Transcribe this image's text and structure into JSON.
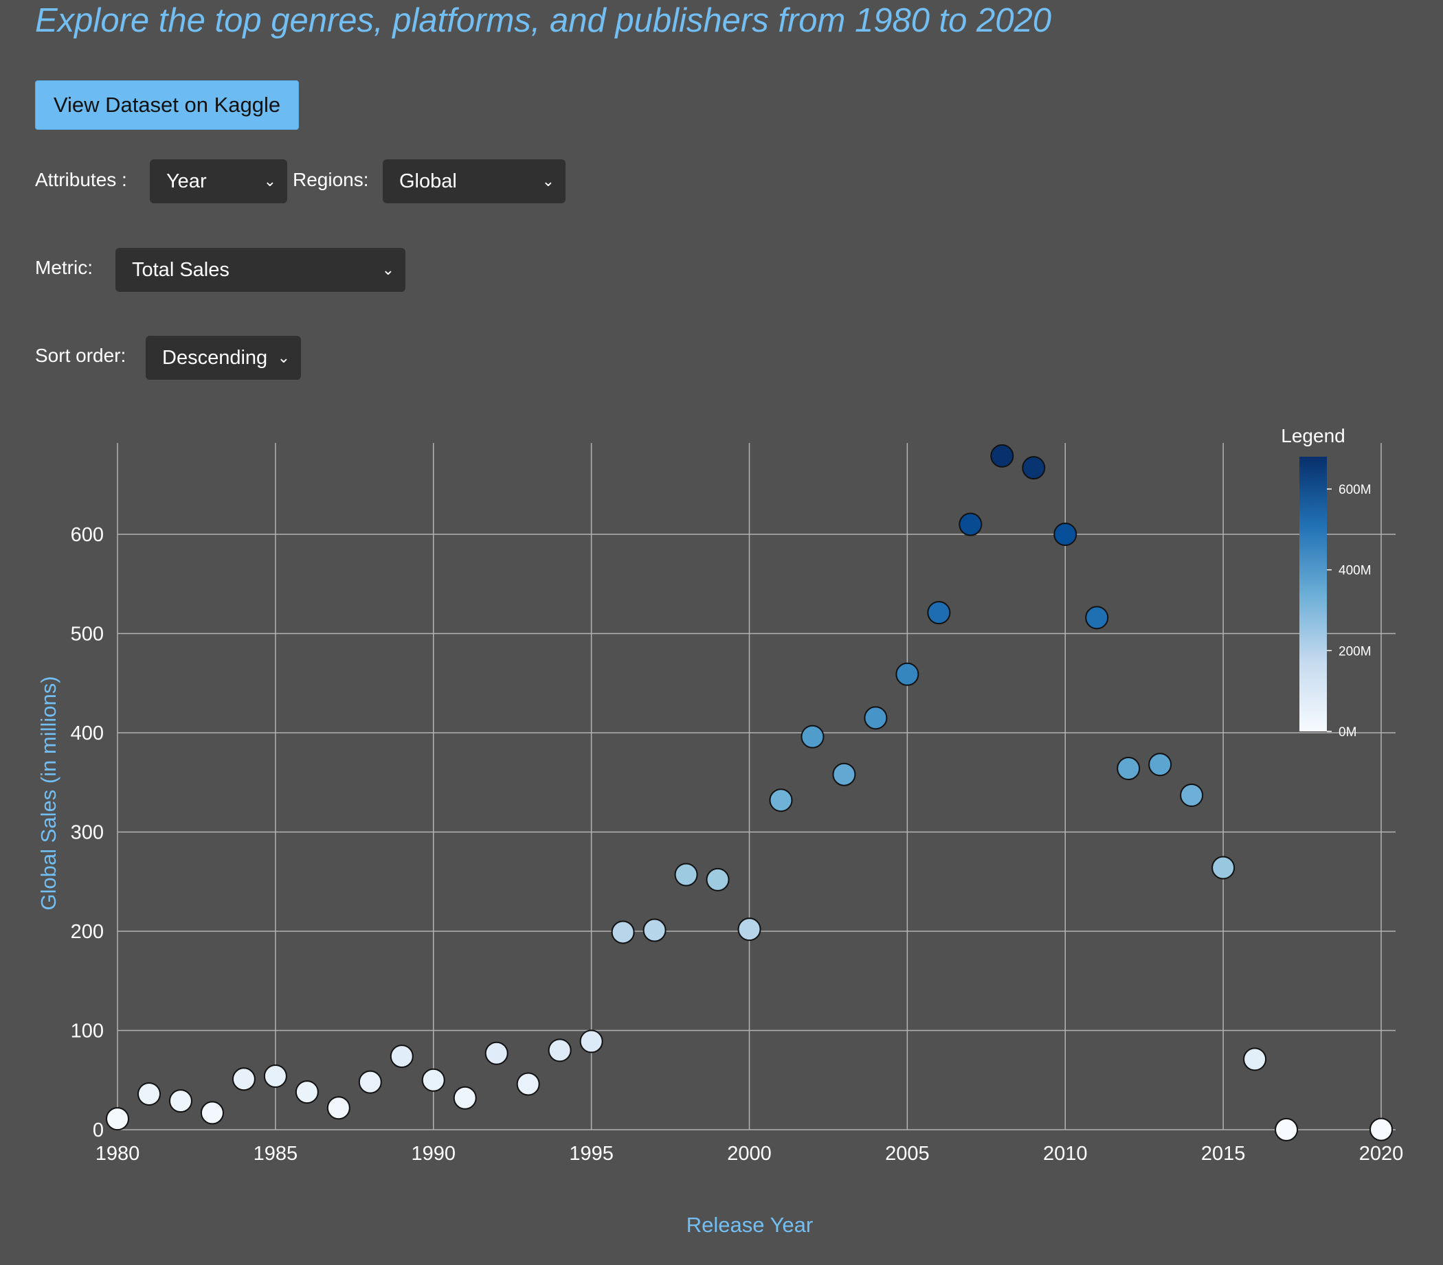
{
  "subtitle": "Explore the top genres, platforms, and publishers from 1980 to 2020",
  "kaggle_button": {
    "label": "View Dataset on Kaggle"
  },
  "controls": {
    "attributes": {
      "label": "Attributes :",
      "value": "Year"
    },
    "regions": {
      "label": "Regions:",
      "value": "Global"
    },
    "metric": {
      "label": "Metric:",
      "value": "Total Sales"
    },
    "sort_order": {
      "label": "Sort order:",
      "value": "Descending"
    }
  },
  "icons": {
    "dropdown": "chevron-down-icon"
  },
  "colors": {
    "accent": "#73bff3",
    "button": "#6cbcf3",
    "background": "#515151",
    "select_bg": "#303030",
    "scale_low": "#f7fbff",
    "scale_high": "#08306b"
  },
  "chart_data": {
    "type": "scatter",
    "title": "",
    "xlabel": "Release Year",
    "ylabel": "Global Sales (in millions)",
    "xlim": [
      1980,
      2020
    ],
    "ylim": [
      0,
      690
    ],
    "x_ticks": [
      1980,
      1985,
      1990,
      1995,
      2000,
      2005,
      2010,
      2015,
      2020
    ],
    "y_ticks": [
      0,
      100,
      200,
      300,
      400,
      500,
      600
    ],
    "grid": true,
    "legend": {
      "title": "Legend",
      "placement": "top-right",
      "domain": [
        0,
        680
      ],
      "ticks": [
        {
          "value": 0,
          "label": "0M"
        },
        {
          "value": 200,
          "label": "200M"
        },
        {
          "value": 400,
          "label": "400M"
        },
        {
          "value": 600,
          "label": "600M"
        }
      ]
    },
    "points": [
      {
        "x": 1980,
        "y": 11
      },
      {
        "x": 1981,
        "y": 36
      },
      {
        "x": 1982,
        "y": 29
      },
      {
        "x": 1983,
        "y": 17
      },
      {
        "x": 1984,
        "y": 51
      },
      {
        "x": 1985,
        "y": 54
      },
      {
        "x": 1986,
        "y": 38
      },
      {
        "x": 1987,
        "y": 22
      },
      {
        "x": 1988,
        "y": 48
      },
      {
        "x": 1989,
        "y": 74
      },
      {
        "x": 1990,
        "y": 50
      },
      {
        "x": 1991,
        "y": 32
      },
      {
        "x": 1992,
        "y": 77
      },
      {
        "x": 1993,
        "y": 46
      },
      {
        "x": 1994,
        "y": 80
      },
      {
        "x": 1995,
        "y": 89
      },
      {
        "x": 1996,
        "y": 199
      },
      {
        "x": 1997,
        "y": 201
      },
      {
        "x": 1998,
        "y": 257
      },
      {
        "x": 1999,
        "y": 252
      },
      {
        "x": 2000,
        "y": 202
      },
      {
        "x": 2001,
        "y": 332
      },
      {
        "x": 2002,
        "y": 396
      },
      {
        "x": 2003,
        "y": 358
      },
      {
        "x": 2004,
        "y": 415
      },
      {
        "x": 2005,
        "y": 459
      },
      {
        "x": 2006,
        "y": 521
      },
      {
        "x": 2007,
        "y": 610
      },
      {
        "x": 2008,
        "y": 679
      },
      {
        "x": 2009,
        "y": 667
      },
      {
        "x": 2010,
        "y": 600
      },
      {
        "x": 2011,
        "y": 516
      },
      {
        "x": 2012,
        "y": 364
      },
      {
        "x": 2013,
        "y": 368
      },
      {
        "x": 2014,
        "y": 337
      },
      {
        "x": 2015,
        "y": 264
      },
      {
        "x": 2016,
        "y": 71
      },
      {
        "x": 2017,
        "y": 0.05
      },
      {
        "x": 2020,
        "y": 0.29
      }
    ]
  }
}
